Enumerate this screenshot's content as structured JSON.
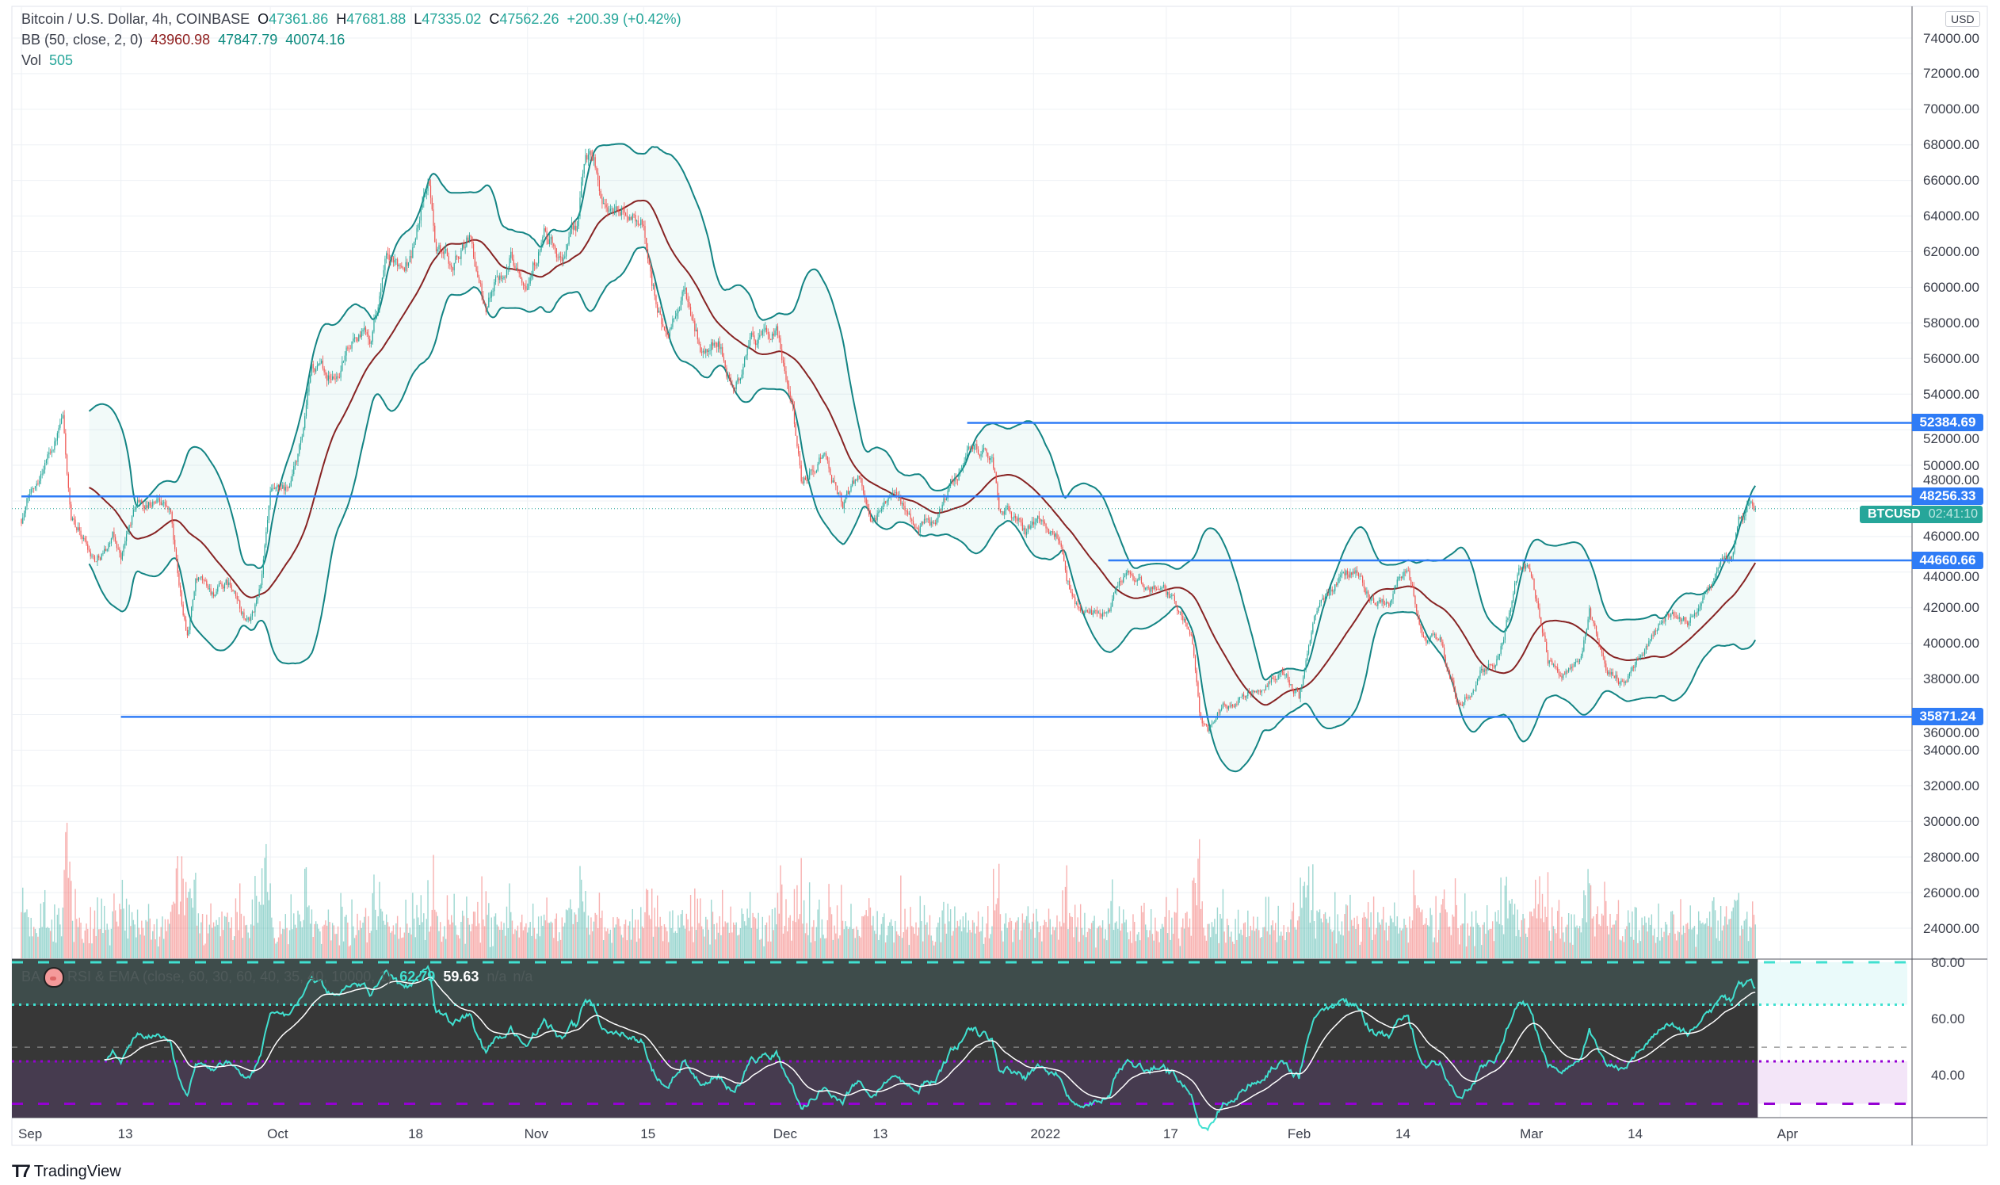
{
  "header": {
    "title": "Bitcoin / U.S. Dollar, 4h, COINBASE",
    "ohlc": {
      "o_label": "O",
      "o": "47361.86",
      "h_label": "H",
      "h": "47681.88",
      "l_label": "L",
      "l": "47335.02",
      "c_label": "C",
      "c": "47562.26",
      "change": "+200.39 (+0.42%)"
    },
    "bb": {
      "label": "BB (50, close, 2, 0)",
      "basis": "43960.98",
      "upper": "47847.79",
      "lower": "40074.16"
    },
    "vol": {
      "label": "Vol",
      "value": "505"
    }
  },
  "currency_label": "USD",
  "last_price": {
    "symbol": "BTCUSD",
    "countdown": "02:41:10",
    "value": 47562.26
  },
  "horizontal_lines": [
    {
      "label": "52384.69",
      "value": 52384.69,
      "start": "2021-12-24"
    },
    {
      "label": "48256.33",
      "value": 48256.33,
      "start": "2021-09-01"
    },
    {
      "label": "44660.66",
      "value": 44660.66,
      "start": "2022-01-10"
    },
    {
      "label": "35871.24",
      "value": 35871.24,
      "start": "2021-09-13"
    }
  ],
  "rsi_pane": {
    "prefix": "BA",
    "label": "RSI & EMA (close, 60, 30, 60, 40, 35, 40, 10000, 1)",
    "rsi_value": "62.79",
    "ema_value": "59.63",
    "na1": "n/a",
    "na2": "n/a",
    "ticks": [
      "80.00",
      "60.00",
      "40.00"
    ],
    "levels": {
      "upper_dash": 80,
      "upper_dot": 65,
      "mid": 50,
      "lower_dot": 45,
      "lower_dash": 30
    }
  },
  "colors": {
    "up": "#26a69a",
    "down": "#ef5350",
    "bb_band": "#138484",
    "bb_basis": "#872323",
    "hline": "#2f7cf6",
    "rsi": "#40e0d0",
    "ema": "#ffffff",
    "purple": "#9400d3"
  },
  "brand": "TradingView",
  "chart_data": {
    "type": "candlestick",
    "interval": "4h",
    "ylim": [
      22500,
      75000
    ],
    "y_ticks": [
      "74000.00",
      "72000.00",
      "70000.00",
      "68000.00",
      "66000.00",
      "64000.00",
      "62000.00",
      "60000.00",
      "58000.00",
      "56000.00",
      "54000.00",
      "52000.00",
      "50000.00",
      "48000.00",
      "46000.00",
      "44000.00",
      "42000.00",
      "40000.00",
      "38000.00",
      "36000.00",
      "34000.00",
      "32000.00",
      "30000.00",
      "28000.00",
      "26000.00",
      "24000.00"
    ],
    "x_ticks": [
      {
        "label": "Sep",
        "date": "2021-09-01"
      },
      {
        "label": "13",
        "date": "2021-09-13"
      },
      {
        "label": "Oct",
        "date": "2021-10-01"
      },
      {
        "label": "18",
        "date": "2021-10-18"
      },
      {
        "label": "Nov",
        "date": "2021-11-01"
      },
      {
        "label": "15",
        "date": "2021-11-15"
      },
      {
        "label": "Dec",
        "date": "2021-12-01"
      },
      {
        "label": "13",
        "date": "2021-12-13"
      },
      {
        "label": "2022",
        "date": "2022-01-01"
      },
      {
        "label": "17",
        "date": "2022-01-17"
      },
      {
        "label": "Feb",
        "date": "2022-02-01"
      },
      {
        "label": "14",
        "date": "2022-02-14"
      },
      {
        "label": "Mar",
        "date": "2022-03-01"
      },
      {
        "label": "14",
        "date": "2022-03-14"
      },
      {
        "label": "Apr",
        "date": "2022-04-01"
      }
    ],
    "close_series": [
      [
        "2021-09-01",
        47000
      ],
      [
        "2021-09-03",
        49500
      ],
      [
        "2021-09-05",
        51500
      ],
      [
        "2021-09-06",
        52500
      ],
      [
        "2021-09-07",
        46500
      ],
      [
        "2021-09-08",
        46200
      ],
      [
        "2021-09-10",
        44800
      ],
      [
        "2021-09-12",
        46000
      ],
      [
        "2021-09-13",
        44900
      ],
      [
        "2021-09-15",
        48000
      ],
      [
        "2021-09-16",
        47800
      ],
      [
        "2021-09-18",
        48200
      ],
      [
        "2021-09-19",
        47300
      ],
      [
        "2021-09-20",
        43000
      ],
      [
        "2021-09-21",
        40700
      ],
      [
        "2021-09-22",
        43500
      ],
      [
        "2021-09-24",
        42800
      ],
      [
        "2021-09-26",
        43200
      ],
      [
        "2021-09-28",
        41200
      ],
      [
        "2021-09-29",
        41500
      ],
      [
        "2021-09-30",
        43800
      ],
      [
        "2021-10-01",
        48000
      ],
      [
        "2021-10-03",
        48200
      ],
      [
        "2021-10-05",
        51500
      ],
      [
        "2021-10-06",
        55300
      ],
      [
        "2021-10-09",
        54900
      ],
      [
        "2021-10-11",
        57400
      ],
      [
        "2021-10-13",
        57400
      ],
      [
        "2021-10-15",
        61500
      ],
      [
        "2021-10-16",
        60800
      ],
      [
        "2021-10-18",
        62000
      ],
      [
        "2021-10-20",
        65900
      ],
      [
        "2021-10-21",
        62300
      ],
      [
        "2021-10-23",
        61300
      ],
      [
        "2021-10-25",
        63000
      ],
      [
        "2021-10-27",
        58400
      ],
      [
        "2021-10-28",
        60500
      ],
      [
        "2021-10-30",
        61800
      ],
      [
        "2021-11-01",
        61000
      ],
      [
        "2021-11-03",
        62900
      ],
      [
        "2021-11-05",
        61400
      ],
      [
        "2021-11-07",
        63300
      ],
      [
        "2021-11-08",
        67500
      ],
      [
        "2021-11-09",
        67600
      ],
      [
        "2021-11-10",
        64900
      ],
      [
        "2021-11-12",
        64100
      ],
      [
        "2021-11-13",
        64400
      ],
      [
        "2021-11-15",
        63600
      ],
      [
        "2021-11-16",
        60300
      ],
      [
        "2021-11-18",
        56900
      ],
      [
        "2021-11-20",
        59700
      ],
      [
        "2021-11-22",
        56300
      ],
      [
        "2021-11-24",
        57100
      ],
      [
        "2021-11-26",
        53800
      ],
      [
        "2021-11-28",
        57200
      ],
      [
        "2021-11-30",
        57000
      ],
      [
        "2021-12-01",
        57200
      ],
      [
        "2021-12-03",
        53700
      ],
      [
        "2021-12-04",
        49200
      ],
      [
        "2021-12-06",
        50500
      ],
      [
        "2021-12-07",
        50600
      ],
      [
        "2021-12-09",
        47600
      ],
      [
        "2021-12-11",
        49400
      ],
      [
        "2021-12-13",
        46700
      ],
      [
        "2021-12-14",
        48300
      ],
      [
        "2021-12-16",
        47600
      ],
      [
        "2021-12-18",
        46700
      ],
      [
        "2021-12-20",
        46700
      ],
      [
        "2021-12-22",
        48600
      ],
      [
        "2021-12-24",
        50800
      ],
      [
        "2021-12-27",
        50700
      ],
      [
        "2021-12-28",
        47500
      ],
      [
        "2021-12-30",
        47100
      ],
      [
        "2021-12-31",
        46300
      ],
      [
        "2022-01-02",
        47300
      ],
      [
        "2022-01-04",
        45800
      ],
      [
        "2022-01-05",
        43400
      ],
      [
        "2022-01-07",
        41500
      ],
      [
        "2022-01-10",
        41800
      ],
      [
        "2022-01-12",
        43900
      ],
      [
        "2022-01-14",
        43000
      ],
      [
        "2022-01-16",
        43100
      ],
      [
        "2022-01-18",
        42300
      ],
      [
        "2022-01-20",
        40700
      ],
      [
        "2022-01-21",
        36400
      ],
      [
        "2022-01-22",
        35000
      ],
      [
        "2022-01-24",
        36600
      ],
      [
        "2022-01-26",
        36900
      ],
      [
        "2022-01-28",
        37700
      ],
      [
        "2022-01-31",
        38400
      ],
      [
        "2022-02-02",
        36900
      ],
      [
        "2022-02-04",
        41500
      ],
      [
        "2022-02-07",
        43800
      ],
      [
        "2022-02-09",
        44400
      ],
      [
        "2022-02-11",
        42400
      ],
      [
        "2022-02-13",
        42200
      ],
      [
        "2022-02-15",
        44500
      ],
      [
        "2022-02-17",
        40500
      ],
      [
        "2022-02-19",
        40100
      ],
      [
        "2022-02-21",
        37000
      ],
      [
        "2022-02-23",
        37300
      ],
      [
        "2022-02-24",
        38300
      ],
      [
        "2022-02-26",
        39200
      ],
      [
        "2022-02-28",
        43200
      ],
      [
        "2022-03-01",
        44400
      ],
      [
        "2022-03-02",
        44000
      ],
      [
        "2022-03-04",
        39100
      ],
      [
        "2022-03-06",
        38400
      ],
      [
        "2022-03-08",
        38700
      ],
      [
        "2022-03-09",
        41900
      ],
      [
        "2022-03-11",
        38800
      ],
      [
        "2022-03-13",
        37800
      ],
      [
        "2022-03-15",
        39300
      ],
      [
        "2022-03-17",
        40900
      ],
      [
        "2022-03-19",
        42200
      ],
      [
        "2022-03-21",
        41000
      ],
      [
        "2022-03-23",
        42900
      ],
      [
        "2022-03-25",
        44300
      ],
      [
        "2022-03-26",
        44500
      ],
      [
        "2022-03-27",
        46800
      ],
      [
        "2022-03-28",
        47400
      ],
      [
        "2022-03-29",
        47562.26
      ]
    ],
    "indicators": [
      "Bollinger Bands (50, 2)",
      "Volume",
      "RSI (60) & EMA (30)"
    ]
  }
}
